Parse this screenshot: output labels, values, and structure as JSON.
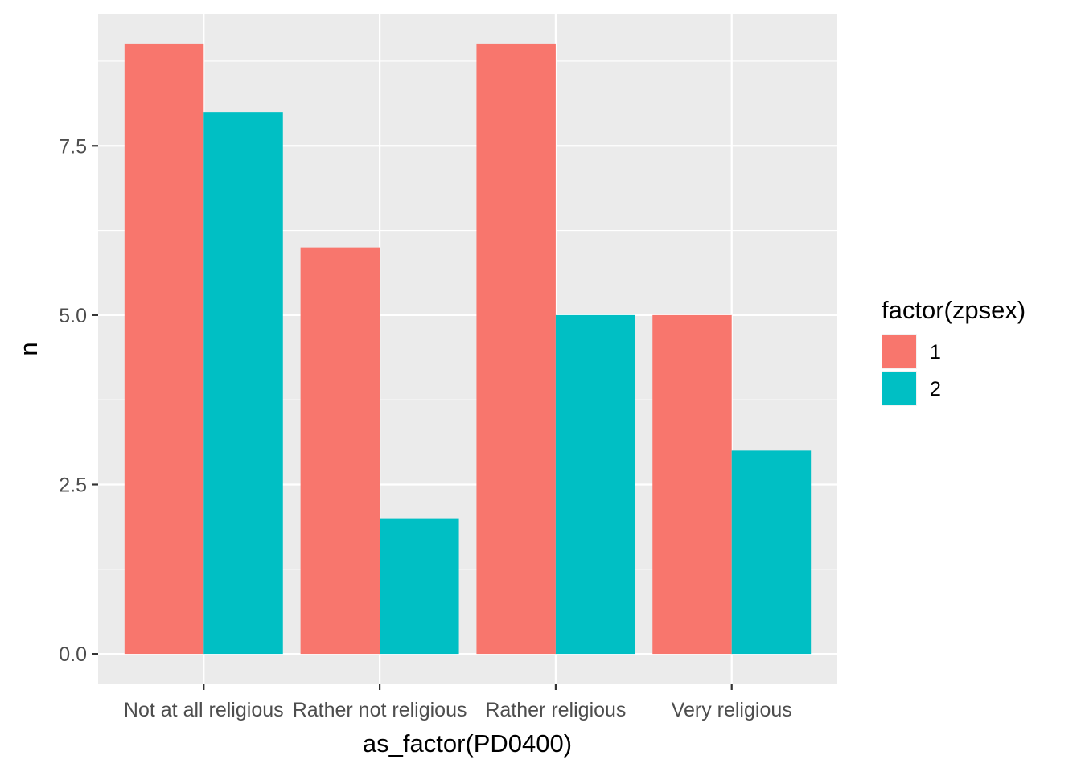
{
  "chart_data": {
    "type": "bar",
    "title": "",
    "xlabel": "as_factor(PD0400)",
    "ylabel": "n",
    "categories": [
      "Not at all religious",
      "Rather not religious",
      "Rather religious",
      "Very religious"
    ],
    "series": [
      {
        "name": "1",
        "values": [
          9,
          6,
          9,
          5
        ],
        "color": "#F8766D"
      },
      {
        "name": "2",
        "values": [
          8,
          2,
          5,
          3
        ],
        "color": "#00BFC4"
      }
    ],
    "ylim": [
      -0.45,
      9.45
    ],
    "yticks": [
      0.0,
      2.5,
      5.0,
      7.5
    ],
    "ytick_labels": [
      "0.0",
      "2.5",
      "5.0",
      "7.5"
    ],
    "grid": true,
    "panel_background": "#EBEBEB",
    "grid_color": "#FFFFFF",
    "legend": {
      "title": "factor(zpsex)",
      "position": "right"
    }
  }
}
